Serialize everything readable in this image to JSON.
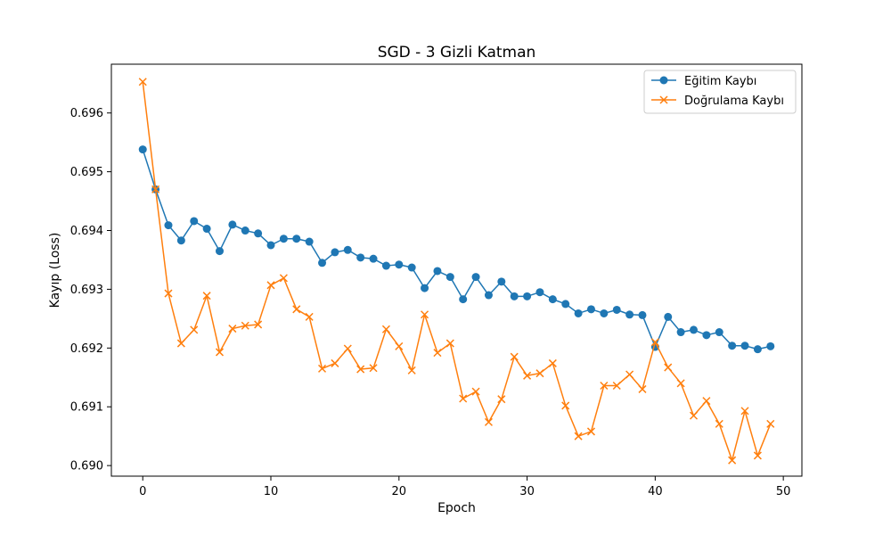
{
  "chart_data": {
    "type": "line",
    "title": "SGD - 3 Gizli Katman",
    "xlabel": "Epoch",
    "ylabel": "Kayıp (Loss)",
    "xlim": [
      -2.45,
      51.45
    ],
    "ylim": [
      0.68982,
      0.69683
    ],
    "xticks": [
      0,
      10,
      20,
      30,
      40,
      50
    ],
    "yticks": [
      0.69,
      0.691,
      0.692,
      0.693,
      0.694,
      0.695,
      0.696
    ],
    "ytick_labels": [
      "0.690",
      "0.691",
      "0.692",
      "0.693",
      "0.694",
      "0.695",
      "0.696"
    ],
    "grid": false,
    "legend_position": "top-right",
    "series": [
      {
        "name": "Eğitim Kaybı",
        "color": "#1f77b4",
        "marker": "circle",
        "values": [
          0.69538,
          0.6947,
          0.69409,
          0.69383,
          0.69416,
          0.69403,
          0.69365,
          0.6941,
          0.694,
          0.69395,
          0.69375,
          0.69386,
          0.69386,
          0.69381,
          0.69345,
          0.69363,
          0.69367,
          0.69354,
          0.69352,
          0.6934,
          0.69342,
          0.69337,
          0.69302,
          0.69331,
          0.69321,
          0.69283,
          0.69321,
          0.6929,
          0.69313,
          0.69288,
          0.69288,
          0.69295,
          0.69283,
          0.69275,
          0.69259,
          0.69266,
          0.69259,
          0.69265,
          0.69257,
          0.69256,
          0.69202,
          0.69253,
          0.69227,
          0.69231,
          0.69222,
          0.69227,
          0.69204,
          0.69204,
          0.69198,
          0.69203
        ]
      },
      {
        "name": "Doğrulama Kaybı",
        "color": "#ff7f0e",
        "marker": "x",
        "values": [
          0.69653,
          0.6947,
          0.69293,
          0.69208,
          0.69231,
          0.69289,
          0.69193,
          0.69233,
          0.69238,
          0.6924,
          0.69307,
          0.69319,
          0.69266,
          0.69253,
          0.69165,
          0.69174,
          0.69199,
          0.69164,
          0.69166,
          0.69232,
          0.69203,
          0.69162,
          0.69257,
          0.69192,
          0.69208,
          0.69114,
          0.69126,
          0.69074,
          0.69113,
          0.69185,
          0.69153,
          0.69157,
          0.69174,
          0.69102,
          0.6905,
          0.69058,
          0.69136,
          0.69136,
          0.69155,
          0.6913,
          0.6921,
          0.69167,
          0.6914,
          0.69085,
          0.6911,
          0.69071,
          0.69009,
          0.69093,
          0.69017,
          0.69071
        ]
      }
    ]
  }
}
